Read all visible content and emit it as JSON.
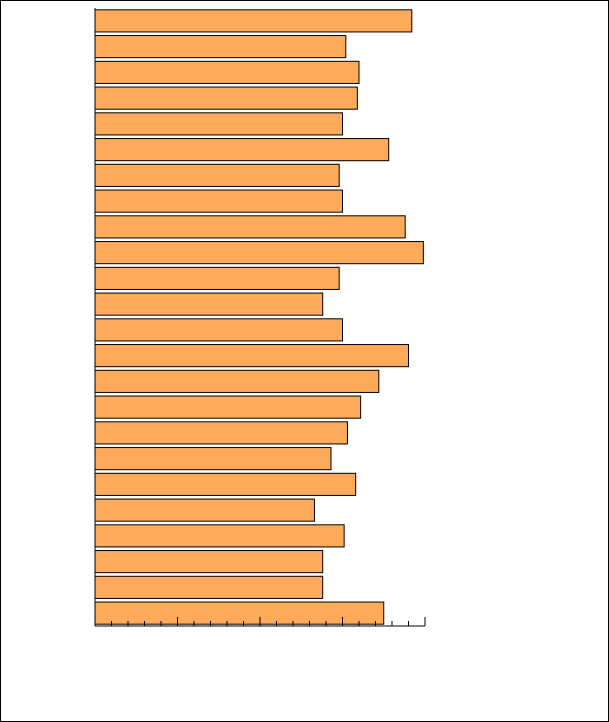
{
  "chart_data": {
    "type": "barh",
    "categories": [
      null,
      null,
      null,
      null,
      null,
      null,
      null,
      null,
      null,
      null,
      null,
      null,
      null,
      null,
      null,
      null,
      null,
      null,
      null,
      null,
      null,
      null,
      null,
      null
    ],
    "values": [
      19.2,
      15.2,
      16.0,
      15.9,
      15.0,
      17.8,
      14.8,
      15.0,
      18.8,
      19.9,
      14.8,
      13.8,
      15.0,
      19.0,
      17.2,
      16.1,
      15.3,
      14.3,
      15.8,
      13.3,
      15.1,
      13.8,
      13.8,
      17.5
    ],
    "color": "#fdaa5b",
    "xlim": [
      0,
      20
    ],
    "xticks": [
      0,
      1,
      2,
      3,
      4,
      5,
      6,
      7,
      8,
      9,
      10,
      11,
      12,
      13,
      14,
      15,
      16,
      17,
      18,
      19,
      20
    ],
    "xticks_major": [
      5,
      10,
      15,
      20
    ]
  }
}
